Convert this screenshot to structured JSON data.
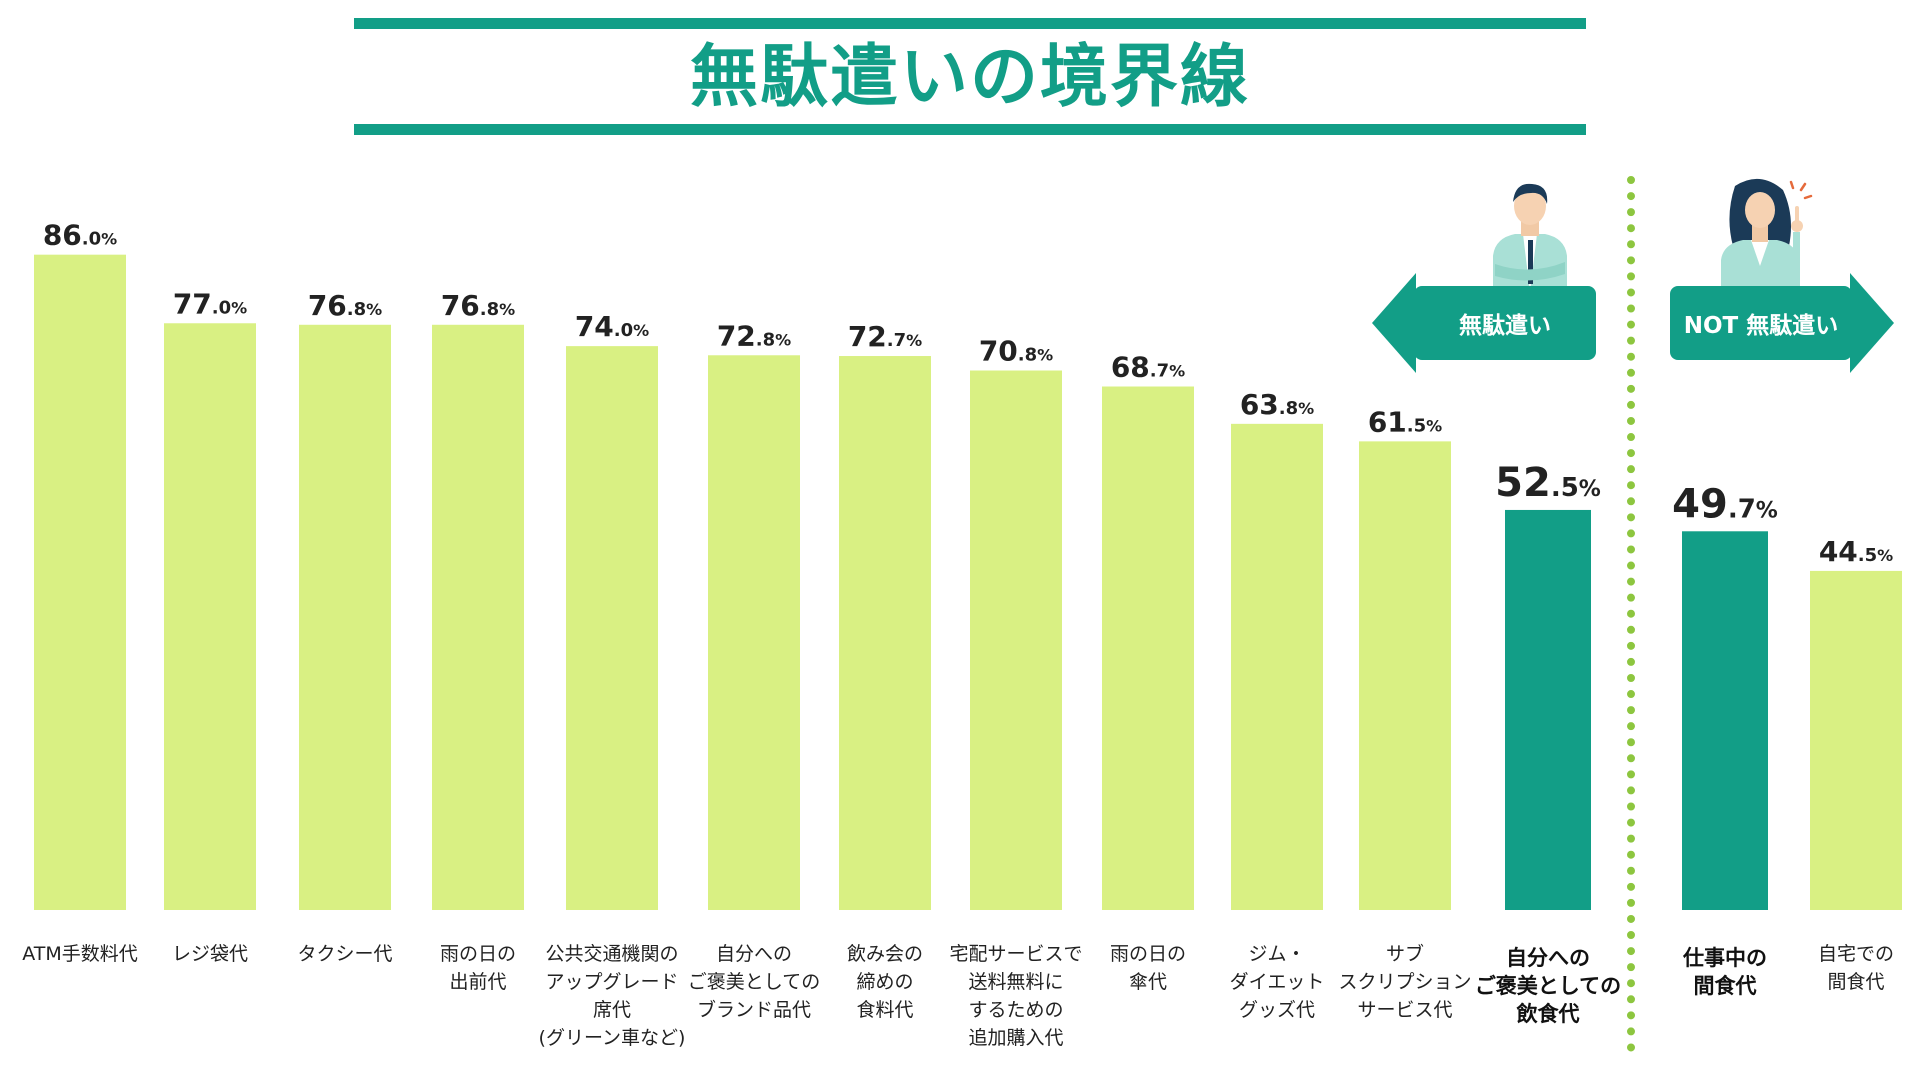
{
  "title": "無駄遣いの境界線",
  "colors": {
    "accent": "#129e87",
    "bar_light": "#d9f083",
    "divider": "#8dc63f",
    "text": "#222222"
  },
  "tags": {
    "wasteful": "無駄遣い",
    "not_wasteful": "NOT 無駄遣い"
  },
  "icons": {
    "man": "businessman-crossed-arms-icon",
    "woman": "businesswoman-pointing-icon"
  },
  "chart_data": {
    "type": "bar",
    "title": "無駄遣いの境界線",
    "unit": "%",
    "ylim": [
      0,
      100
    ],
    "xlabel": "",
    "ylabel": "",
    "grid": false,
    "categories": [
      "ATM手数料代",
      "レジ袋代",
      "タクシー代",
      "雨の日の\n出前代",
      "公共交通機関の\nアップグレード\n席代\n(グリーン車など)",
      "自分への\nご褒美としての\nブランド品代",
      "飲み会の\n締めの\n食料代",
      "宅配サービスで\n送料無料に\nするための\n追加購入代",
      "雨の日の\n傘代",
      "ジム・\nダイエット\nグッズ代",
      "サブ\nスクリプション\nサービス代",
      "自分への\nご褒美としての\n飲食代",
      "仕事中の\n間食代",
      "自宅での\n間食代"
    ],
    "values": [
      86.0,
      77.0,
      76.8,
      76.8,
      74.0,
      72.8,
      72.7,
      70.8,
      68.7,
      63.8,
      61.5,
      52.5,
      49.7,
      44.5
    ],
    "value_labels": [
      "86.0",
      "77.0",
      "76.8",
      "76.8",
      "74.0",
      "72.8",
      "72.7",
      "70.8",
      "68.7",
      "63.8",
      "61.5",
      "52.5",
      "49.7",
      "44.5"
    ],
    "highlighted": [
      false,
      false,
      false,
      false,
      false,
      false,
      false,
      false,
      false,
      false,
      false,
      true,
      true,
      false
    ]
  }
}
